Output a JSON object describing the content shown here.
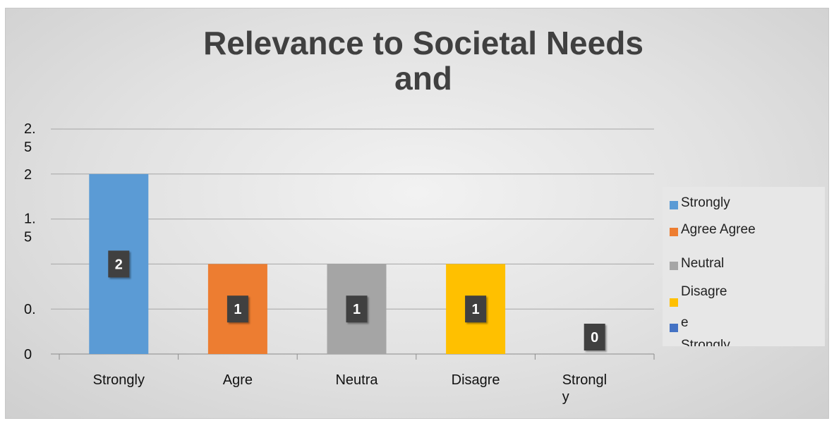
{
  "chart_data": {
    "type": "bar",
    "title": "Relevance to Societal Needs and",
    "categories": [
      "Strongly",
      "Agre",
      "Neutra",
      "Disagre",
      "Strongl\ny"
    ],
    "values": [
      2,
      1,
      1,
      1,
      0
    ],
    "data_labels": [
      "2",
      "1",
      "1",
      "1",
      "0"
    ],
    "colors": [
      "#5b9bd5",
      "#ed7d31",
      "#a5a5a5",
      "#ffc000",
      "#4472c4"
    ],
    "y_tick_values": [
      0,
      0.5,
      1,
      1.5,
      2,
      2.5
    ],
    "y_tick_labels": [
      "0",
      "0.",
      "",
      "1.\n5",
      "2",
      "2.\n5"
    ],
    "ylim": [
      0,
      2.5
    ],
    "grid": true,
    "legend": {
      "placement": "right",
      "entries": [
        {
          "label": "Strongly",
          "color": "#5b9bd5"
        },
        {
          "label": "Agree Agree",
          "color": "#ed7d31"
        },
        {
          "label": "Neutral",
          "color": "#a5a5a5"
        },
        {
          "label": "Disagre",
          "color": "#ffc000"
        },
        {
          "label": "e",
          "color": "#4472c4"
        },
        {
          "label": "Strongly",
          "color": ""
        }
      ]
    }
  }
}
